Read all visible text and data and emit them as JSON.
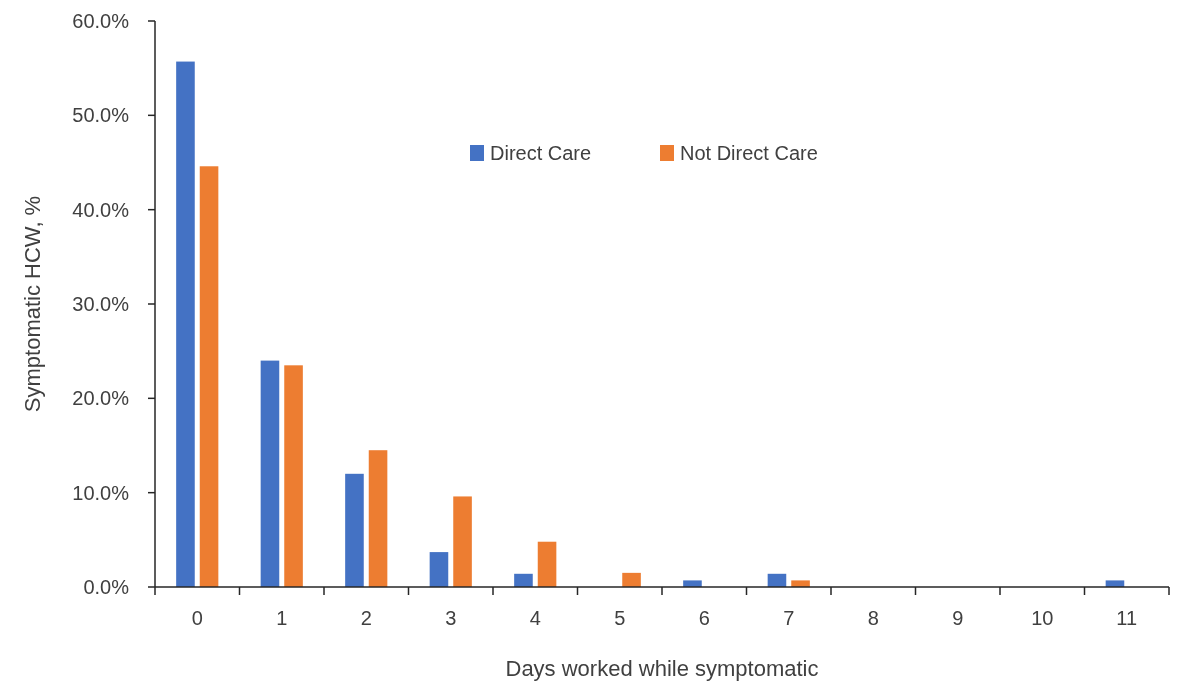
{
  "chart_data": {
    "type": "bar",
    "xlabel": "Days worked while symptomatic",
    "ylabel": "Symptomatic HCW, %",
    "categories": [
      "0",
      "1",
      "2",
      "3",
      "4",
      "5",
      "6",
      "7",
      "8",
      "9",
      "10",
      "11"
    ],
    "series": [
      {
        "name": "Direct Care",
        "color": "#4472c4",
        "values": [
          55.7,
          24.0,
          12.0,
          3.7,
          1.4,
          0,
          0.7,
          1.4,
          0,
          0,
          0,
          0.7
        ]
      },
      {
        "name": "Not Direct Care",
        "color": "#ed7d31",
        "values": [
          44.6,
          23.5,
          14.5,
          9.6,
          4.8,
          1.5,
          0,
          0.7,
          0,
          0,
          0,
          0
        ]
      }
    ],
    "ylim": [
      0,
      60
    ],
    "yticks": [
      {
        "value": 0,
        "label": "0.0%"
      },
      {
        "value": 10,
        "label": "10.0%"
      },
      {
        "value": 20,
        "label": "20.0%"
      },
      {
        "value": 30,
        "label": "30.0%"
      },
      {
        "value": 40,
        "label": "40.0%"
      },
      {
        "value": 50,
        "label": "50.0%"
      },
      {
        "value": 60,
        "label": "60.0%"
      }
    ],
    "grid": false,
    "legend": "top"
  }
}
